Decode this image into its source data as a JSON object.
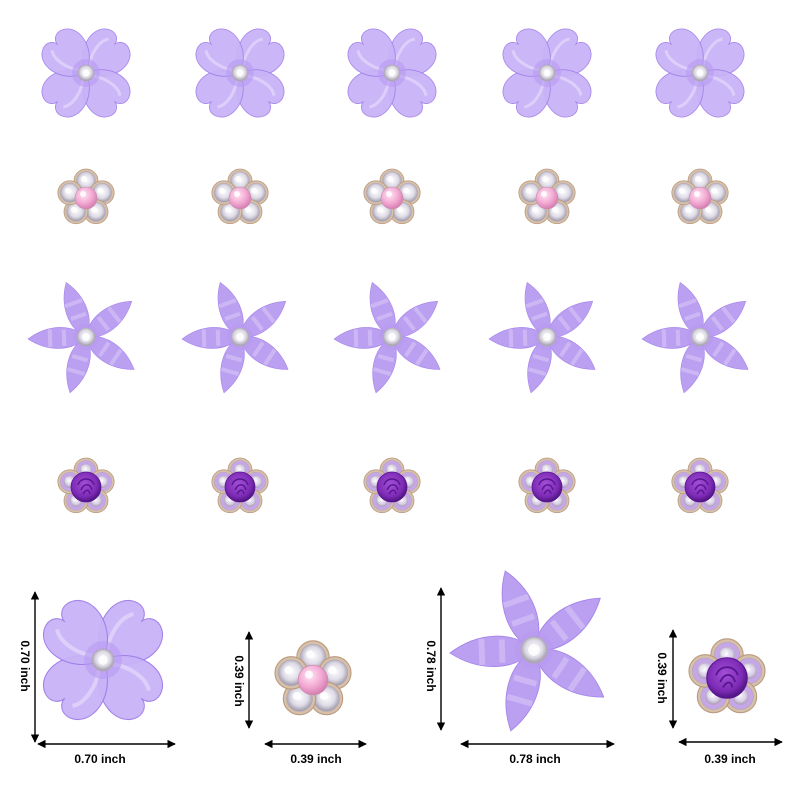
{
  "colors": {
    "petal_light": "#c9b3f7",
    "petal_mid": "#b89af2",
    "petal_dark": "#a07ee8",
    "star_petal": "#b89af1",
    "crystal": "#e9e6f2",
    "crystal_edge": "#b0aab8",
    "gold_rim": "#d8bfa8",
    "pearl_pink": "#f2a9d2",
    "rose_purple": "#7d2bb6",
    "rose_dark": "#5a1690",
    "lilac_stone": "#c7a6e8",
    "dim_line": "#000000"
  },
  "grid_rows": [
    {
      "kind": "purple-clover-flower",
      "count": 5
    },
    {
      "kind": "pearl-rhinestone-flower",
      "count": 5
    },
    {
      "kind": "purple-star-flower",
      "count": 5
    },
    {
      "kind": "rose-rhinestone-flower",
      "count": 5
    }
  ],
  "samples": [
    {
      "kind": "purple-clover-flower",
      "width_label": "0.70 inch",
      "height_label": "0.70 inch"
    },
    {
      "kind": "pearl-rhinestone-flower",
      "width_label": "0.39 inch",
      "height_label": "0.39 inch"
    },
    {
      "kind": "purple-star-flower",
      "width_label": "0.78 inch",
      "height_label": "0.78 inch"
    },
    {
      "kind": "rose-rhinestone-flower",
      "width_label": "0.39 inch",
      "height_label": "0.39 inch"
    }
  ]
}
